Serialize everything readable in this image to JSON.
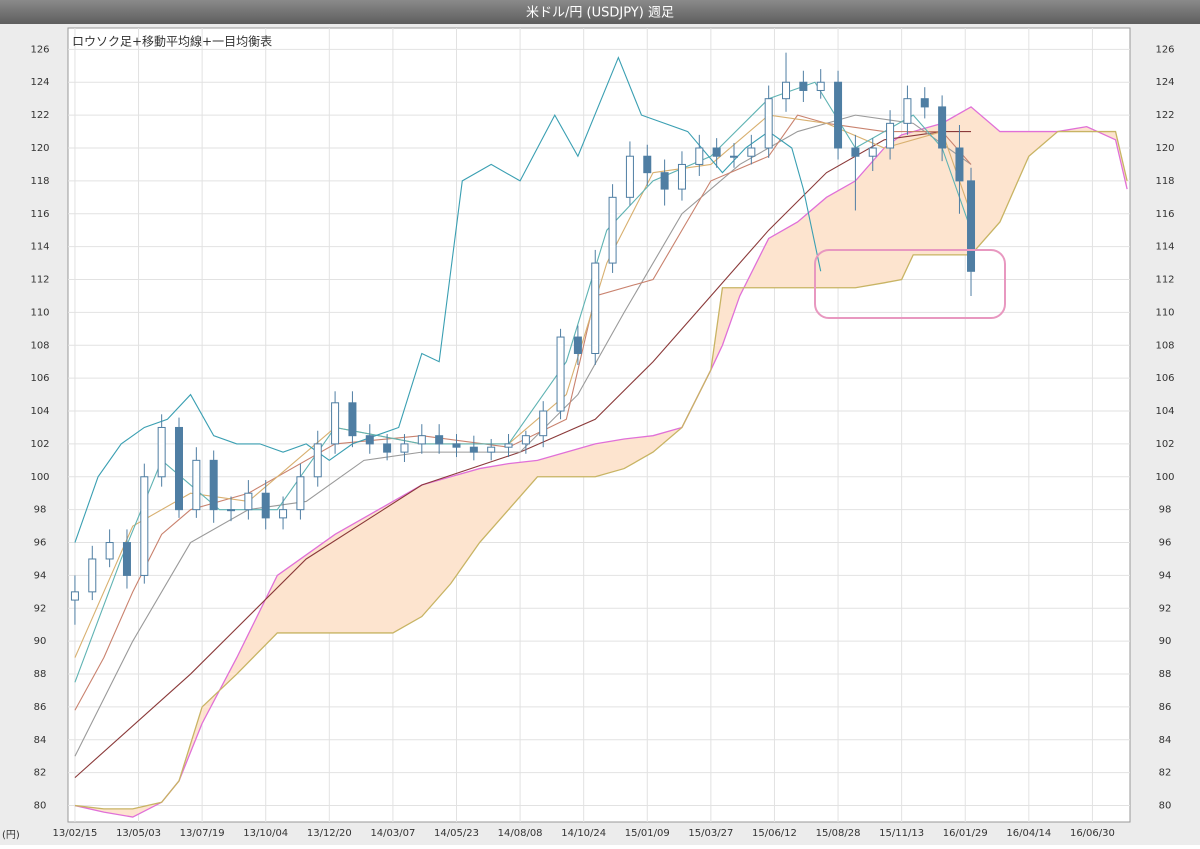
{
  "chart_data": {
    "type": "candlestick",
    "title": "米ドル/円 (USDJPY) 週足",
    "subtitle": "ロウソク足+移動平均線+一目均衡表",
    "y_unit": "(円)",
    "xlim": [
      -1.2,
      182.5
    ],
    "xticks": [
      {
        "value": 0,
        "label": "13/02/15"
      },
      {
        "value": 11,
        "label": "13/05/03"
      },
      {
        "value": 22,
        "label": "13/07/19"
      },
      {
        "value": 33,
        "label": "13/10/04"
      },
      {
        "value": 44,
        "label": "13/12/20"
      },
      {
        "value": 55,
        "label": "14/03/07"
      },
      {
        "value": 66,
        "label": "14/05/23"
      },
      {
        "value": 77,
        "label": "14/08/08"
      },
      {
        "value": 88,
        "label": "14/10/24"
      },
      {
        "value": 99,
        "label": "15/01/09"
      },
      {
        "value": 110,
        "label": "15/03/27"
      },
      {
        "value": 121,
        "label": "15/06/12"
      },
      {
        "value": 132,
        "label": "15/08/28"
      },
      {
        "value": 143,
        "label": "15/11/13"
      },
      {
        "value": 154,
        "label": "16/01/29"
      },
      {
        "value": 165,
        "label": "16/04/14"
      },
      {
        "value": 176,
        "label": "16/06/30"
      }
    ],
    "ylim": [
      79,
      127.3
    ],
    "yticks": [
      80,
      82,
      84,
      86,
      88,
      90,
      92,
      94,
      96,
      98,
      100,
      102,
      104,
      106,
      108,
      110,
      112,
      114,
      116,
      118,
      120,
      122,
      124,
      126
    ],
    "grid": true,
    "candle_color": "#4f7ea3",
    "candles": {
      "x": [
        0,
        3,
        6,
        9,
        12,
        15,
        18,
        21,
        24,
        27,
        30,
        33,
        36,
        39,
        42,
        45,
        48,
        51,
        54,
        57,
        60,
        63,
        66,
        69,
        72,
        75,
        78,
        81,
        84,
        87,
        90,
        93,
        96,
        99,
        102,
        105,
        108,
        111,
        114,
        117,
        120,
        123,
        126,
        129,
        132,
        135,
        138,
        141,
        144,
        147,
        150,
        153,
        155
      ],
      "open": [
        92.5,
        93,
        95,
        96,
        94,
        100,
        103,
        98,
        101,
        98,
        98,
        99,
        97.5,
        98,
        100,
        102,
        104.5,
        102.5,
        102,
        101.5,
        102,
        102.5,
        102,
        101.8,
        101.5,
        101.8,
        102,
        102.5,
        104,
        108.5,
        107.5,
        113,
        117,
        119.5,
        118.5,
        117.5,
        119,
        120,
        119.5,
        119.5,
        120,
        123,
        124,
        123.5,
        124,
        120,
        119.5,
        120,
        121.5,
        123,
        122.5,
        120,
        118
      ],
      "high": [
        94,
        95.8,
        96.8,
        96.8,
        100.8,
        103.8,
        103.6,
        101.8,
        101.6,
        98.8,
        99.8,
        99.8,
        98.8,
        100.8,
        102.8,
        105.2,
        105.2,
        103.2,
        102.6,
        102.6,
        103.2,
        103.2,
        102.6,
        102.5,
        102.3,
        102.6,
        102.8,
        104.6,
        109,
        109.2,
        113.8,
        117.8,
        120.4,
        120.2,
        119.3,
        119.8,
        120.8,
        120.6,
        120.3,
        120.8,
        123.8,
        125.8,
        124.7,
        124.8,
        124.7,
        120.8,
        120.6,
        122.3,
        123.8,
        123.7,
        123.2,
        121.4,
        118.8
      ],
      "low": [
        91,
        92.5,
        94.5,
        93.2,
        93.5,
        99.4,
        97.5,
        97.5,
        97.2,
        97.3,
        97.4,
        96.8,
        96.8,
        97.4,
        99.4,
        101.4,
        101.8,
        101.4,
        101,
        100.9,
        101.4,
        101.4,
        101.2,
        101,
        101,
        101.2,
        101.4,
        101.8,
        103.5,
        106.8,
        106.8,
        112.4,
        116.5,
        117.7,
        116.5,
        116.8,
        118.3,
        118.8,
        118.8,
        119,
        119.4,
        122.2,
        122.8,
        123,
        119.3,
        116.2,
        118.6,
        119.3,
        120.8,
        121.8,
        119.2,
        116,
        111
      ],
      "close": [
        93,
        95,
        96,
        94,
        100,
        103,
        98,
        101,
        98,
        98,
        99,
        97.5,
        98,
        100,
        102,
        104.5,
        102.5,
        102,
        101.5,
        102,
        102.5,
        102,
        101.8,
        101.5,
        101.8,
        102,
        102.5,
        104,
        108.5,
        107.5,
        113,
        117,
        119.5,
        118.5,
        117.5,
        119,
        120,
        119.5,
        119.5,
        120,
        123,
        124,
        123.5,
        124,
        120,
        119.5,
        120,
        121.5,
        123,
        122.5,
        120,
        118,
        112.5
      ]
    },
    "cloud": {
      "fill": "#fde4cf",
      "x": [
        0,
        5,
        10,
        15,
        18,
        22,
        28,
        35,
        45,
        55,
        60,
        65,
        70,
        75,
        80,
        85,
        90,
        95,
        100,
        105,
        110,
        112,
        115,
        120,
        125,
        130,
        135,
        140,
        143,
        145,
        150,
        155,
        160,
        165,
        170,
        175,
        180,
        182
      ],
      "span_a": {
        "color": "#e070d8",
        "values": [
          80,
          79.6,
          79.3,
          80.2,
          81.5,
          85,
          89,
          94,
          96.5,
          98.5,
          99.5,
          100,
          100.5,
          100.8,
          101,
          101.5,
          102,
          102.3,
          102.5,
          103,
          106.5,
          108,
          111,
          114.5,
          115.5,
          117,
          118,
          120,
          120.8,
          121,
          121.5,
          122.5,
          121,
          121,
          121,
          121.3,
          120.5,
          117.5
        ]
      },
      "span_b": {
        "color": "#c8b464",
        "values": [
          80,
          79.8,
          79.8,
          80.2,
          81.5,
          86,
          88,
          90.5,
          90.5,
          90.5,
          91.5,
          93.5,
          96,
          98,
          100,
          100,
          100,
          100.5,
          101.5,
          103,
          106.5,
          111.5,
          111.5,
          111.5,
          111.5,
          111.5,
          111.5,
          111.8,
          112,
          113.5,
          113.5,
          113.5,
          115.5,
          119.5,
          121,
          121,
          121,
          118
        ]
      }
    },
    "series": [
      {
        "color": "#8b3a3a",
        "x": [
          0,
          20,
          40,
          60,
          77,
          90,
          100,
          110,
          120,
          130,
          140,
          150,
          155
        ],
        "values": [
          81.7,
          88,
          95,
          99.5,
          101.5,
          103.5,
          107,
          111,
          115,
          118.5,
          120.5,
          121,
          121
        ]
      },
      {
        "color": "#9a9a9a",
        "x": [
          0,
          10,
          20,
          30,
          40,
          50,
          60,
          77,
          87,
          95,
          105,
          115,
          125,
          135,
          145,
          155
        ],
        "values": [
          83,
          90,
          96,
          98,
          98.5,
          101,
          101.5,
          101.5,
          105,
          110,
          116,
          119,
          121,
          122,
          121.5,
          119
        ]
      },
      {
        "color": "#c9826e",
        "x": [
          0,
          5,
          10,
          15,
          20,
          30,
          45,
          60,
          75,
          85,
          90,
          100,
          110,
          120,
          125,
          130,
          140,
          150,
          155
        ],
        "values": [
          85.8,
          89,
          93,
          96.5,
          98,
          99,
          102,
          102.5,
          101.8,
          103.5,
          111,
          112,
          118,
          119.5,
          122,
          121.5,
          121,
          121,
          119
        ]
      },
      {
        "color": "#d8b070",
        "x": [
          0,
          10,
          20,
          30,
          45,
          60,
          75,
          85,
          92,
          100,
          110,
          120,
          130,
          140,
          150,
          155
        ],
        "values": [
          89,
          97,
          99,
          98.5,
          103,
          102,
          102,
          105,
          113,
          118.5,
          119,
          122,
          121.5,
          120,
          121,
          116
        ]
      },
      {
        "color": "#5fb3b3",
        "x": [
          0,
          8,
          15,
          25,
          35,
          45,
          60,
          75,
          85,
          92,
          100,
          110,
          120,
          128,
          135,
          145,
          150,
          155
        ],
        "values": [
          87.5,
          95,
          101,
          98,
          98,
          103,
          102,
          102,
          107,
          115,
          118,
          119.5,
          123,
          124,
          120,
          122,
          120,
          115
        ]
      },
      {
        "color": "#3a9fb2",
        "x": [
          0,
          4,
          8,
          12,
          16,
          20,
          24,
          28,
          32,
          36,
          40,
          44,
          48,
          52,
          56,
          60,
          63,
          67,
          72,
          77,
          83,
          87,
          94,
          98,
          106,
          112,
          116,
          120,
          124,
          126,
          129
        ],
        "values": [
          96,
          100,
          102,
          103,
          103.5,
          105,
          102.5,
          102,
          102,
          101.5,
          102,
          101,
          102,
          102.5,
          103,
          107.5,
          107,
          118,
          119,
          118,
          122,
          119.5,
          125.5,
          122,
          121,
          118.5,
          120,
          121,
          120,
          117.5,
          112.5
        ]
      }
    ]
  }
}
